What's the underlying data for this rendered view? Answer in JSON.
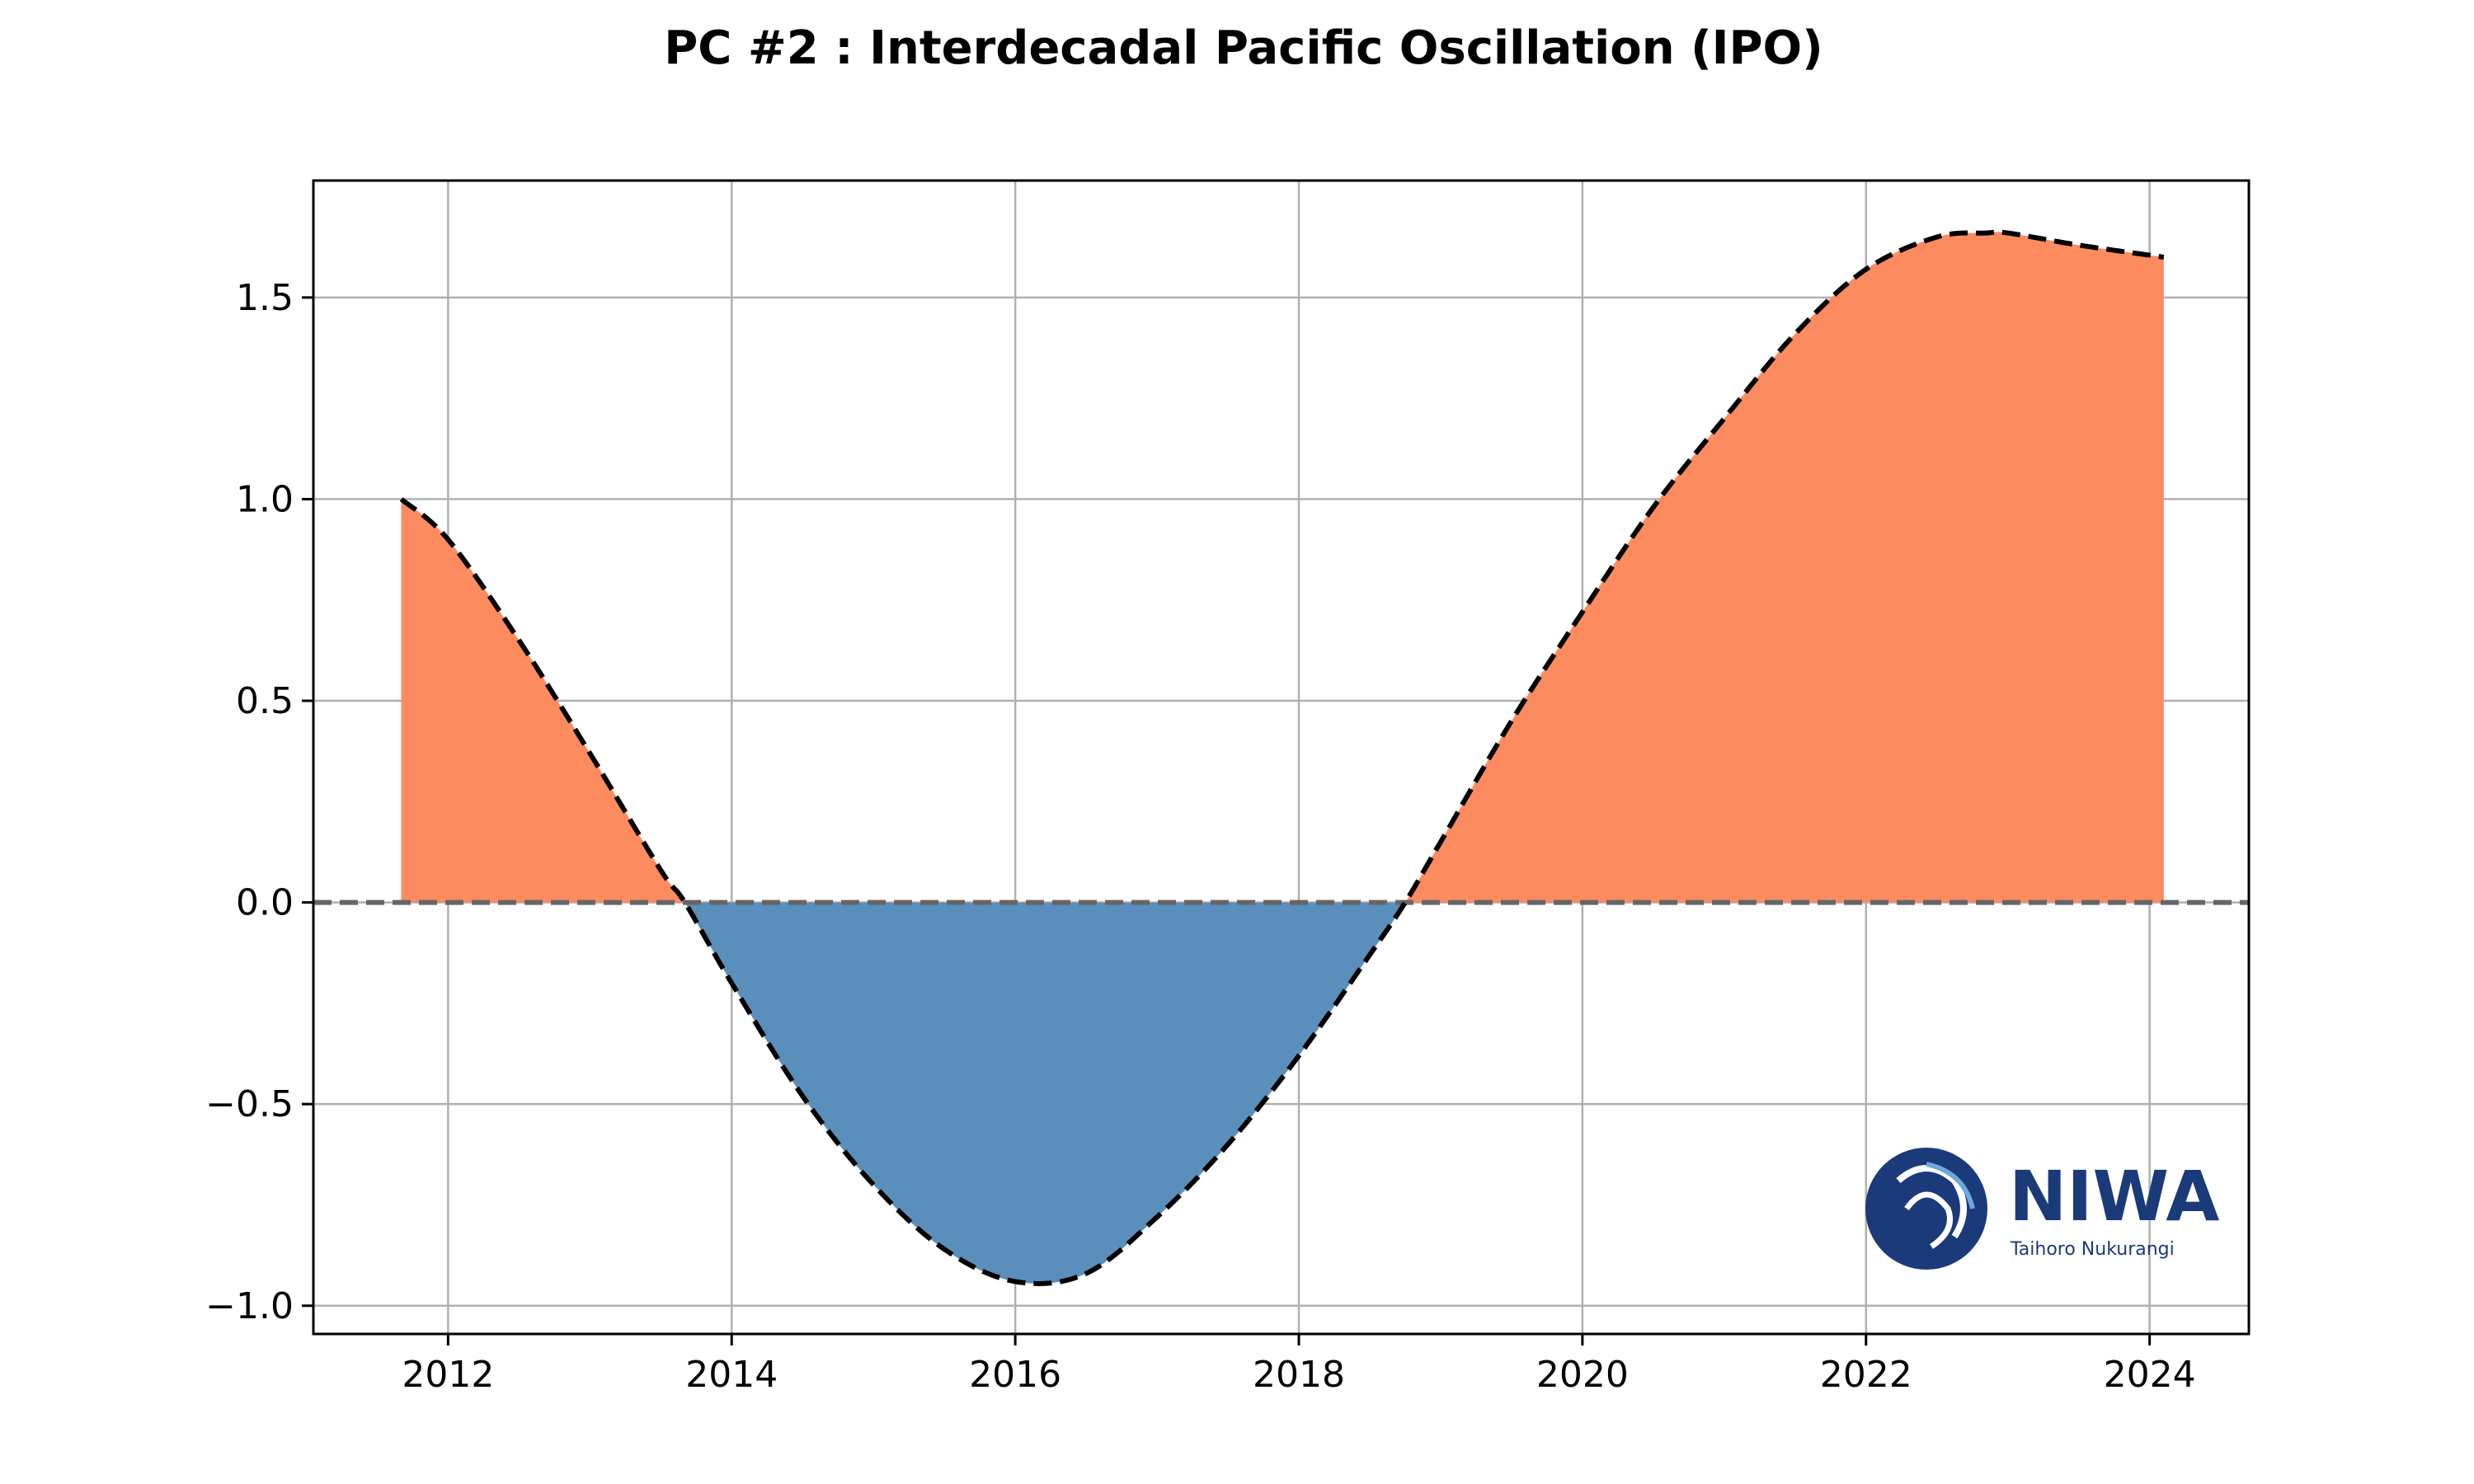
{
  "chart_data": {
    "type": "area",
    "title": "PC #2 : Interdecadal Pacific Oscillation (IPO)",
    "xlabel": "",
    "ylabel": "",
    "xlim": [
      2011.05,
      2024.7
    ],
    "ylim": [
      -1.07,
      1.79
    ],
    "x_ticks": [
      2012,
      2014,
      2016,
      2018,
      2020,
      2022,
      2024
    ],
    "x_tick_labels": [
      "2012",
      "2014",
      "2016",
      "2018",
      "2020",
      "2022",
      "2024"
    ],
    "y_ticks": [
      -1.0,
      -0.5,
      0.0,
      0.5,
      1.0,
      1.5
    ],
    "y_tick_labels": [
      "−1.0",
      "−0.5",
      "0.0",
      "0.5",
      "1.0",
      "1.5"
    ],
    "grid": true,
    "zero_line": {
      "y": 0.0,
      "style": "dashed",
      "color": "#666666"
    },
    "series": [
      {
        "style": "dashed",
        "color": "#000000",
        "fill_positive": "#fd8b60",
        "fill_negative": "#5a8fbb",
        "x": [
          2011.67,
          2012.0,
          2012.5,
          2013.0,
          2013.5,
          2013.67,
          2014.0,
          2014.5,
          2015.0,
          2015.5,
          2016.0,
          2016.5,
          2017.0,
          2017.5,
          2018.0,
          2018.5,
          2018.75,
          2019.0,
          2019.5,
          2020.0,
          2020.5,
          2021.0,
          2021.5,
          2022.0,
          2022.5,
          2022.85,
          2023.0,
          2023.5,
          2024.1
        ],
        "y": [
          1.0,
          0.9,
          0.65,
          0.37,
          0.08,
          0.0,
          -0.2,
          -0.48,
          -0.7,
          -0.86,
          -0.94,
          -0.92,
          -0.78,
          -0.6,
          -0.38,
          -0.13,
          0.0,
          0.15,
          0.45,
          0.72,
          0.98,
          1.2,
          1.41,
          1.57,
          1.65,
          1.66,
          1.66,
          1.63,
          1.6
        ]
      }
    ]
  },
  "logo": {
    "name": "NIWA",
    "tagline": "Taihoro Nukurangi",
    "color": "#1a3a7a"
  }
}
